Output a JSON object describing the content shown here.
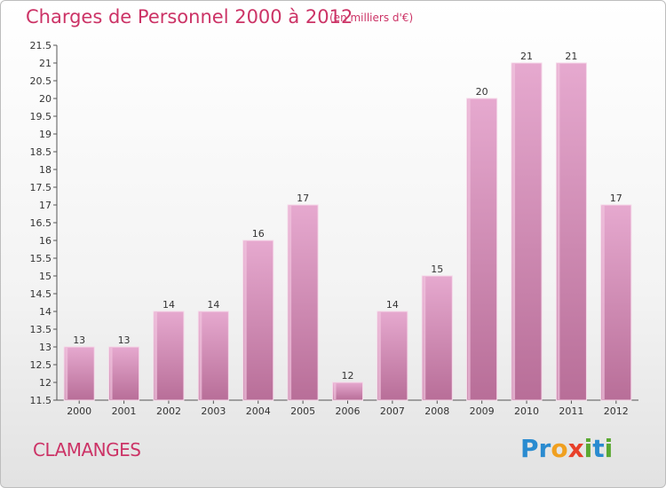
{
  "header": {
    "title": "Charges de Personnel 2000 à 2012",
    "subtitle": "(en milliers d'€)"
  },
  "footer": {
    "commune": "CLAMANGES",
    "logo": [
      {
        "ch": "P",
        "color": "#2a8bd0"
      },
      {
        "ch": "r",
        "color": "#2a8bd0"
      },
      {
        "ch": "o",
        "color": "#f0a020"
      },
      {
        "ch": "x",
        "color": "#e8402a"
      },
      {
        "ch": "i",
        "color": "#5aa832"
      },
      {
        "ch": "t",
        "color": "#2a8bd0"
      },
      {
        "ch": "i",
        "color": "#5aa832"
      }
    ]
  },
  "chart_data": {
    "type": "bar",
    "title": "Charges de Personnel 2000 à 2012",
    "subtitle": "(en milliers d'€)",
    "categories": [
      "2000",
      "2001",
      "2002",
      "2003",
      "2004",
      "2005",
      "2006",
      "2007",
      "2008",
      "2009",
      "2010",
      "2011",
      "2012"
    ],
    "values": [
      13,
      13,
      14,
      14,
      16,
      17,
      12,
      14,
      15,
      20,
      21,
      21,
      17
    ],
    "ylim": [
      11.5,
      21.5
    ],
    "yticks": [
      "11.5",
      "12",
      "12.5",
      "13",
      "13.5",
      "14",
      "14.5",
      "15",
      "15.5",
      "16",
      "16.5",
      "17",
      "17.5",
      "18",
      "18.5",
      "19",
      "19.5",
      "20",
      "20.5",
      "21",
      "21.5"
    ],
    "bar_color": "#d88fb8",
    "grid": false
  }
}
